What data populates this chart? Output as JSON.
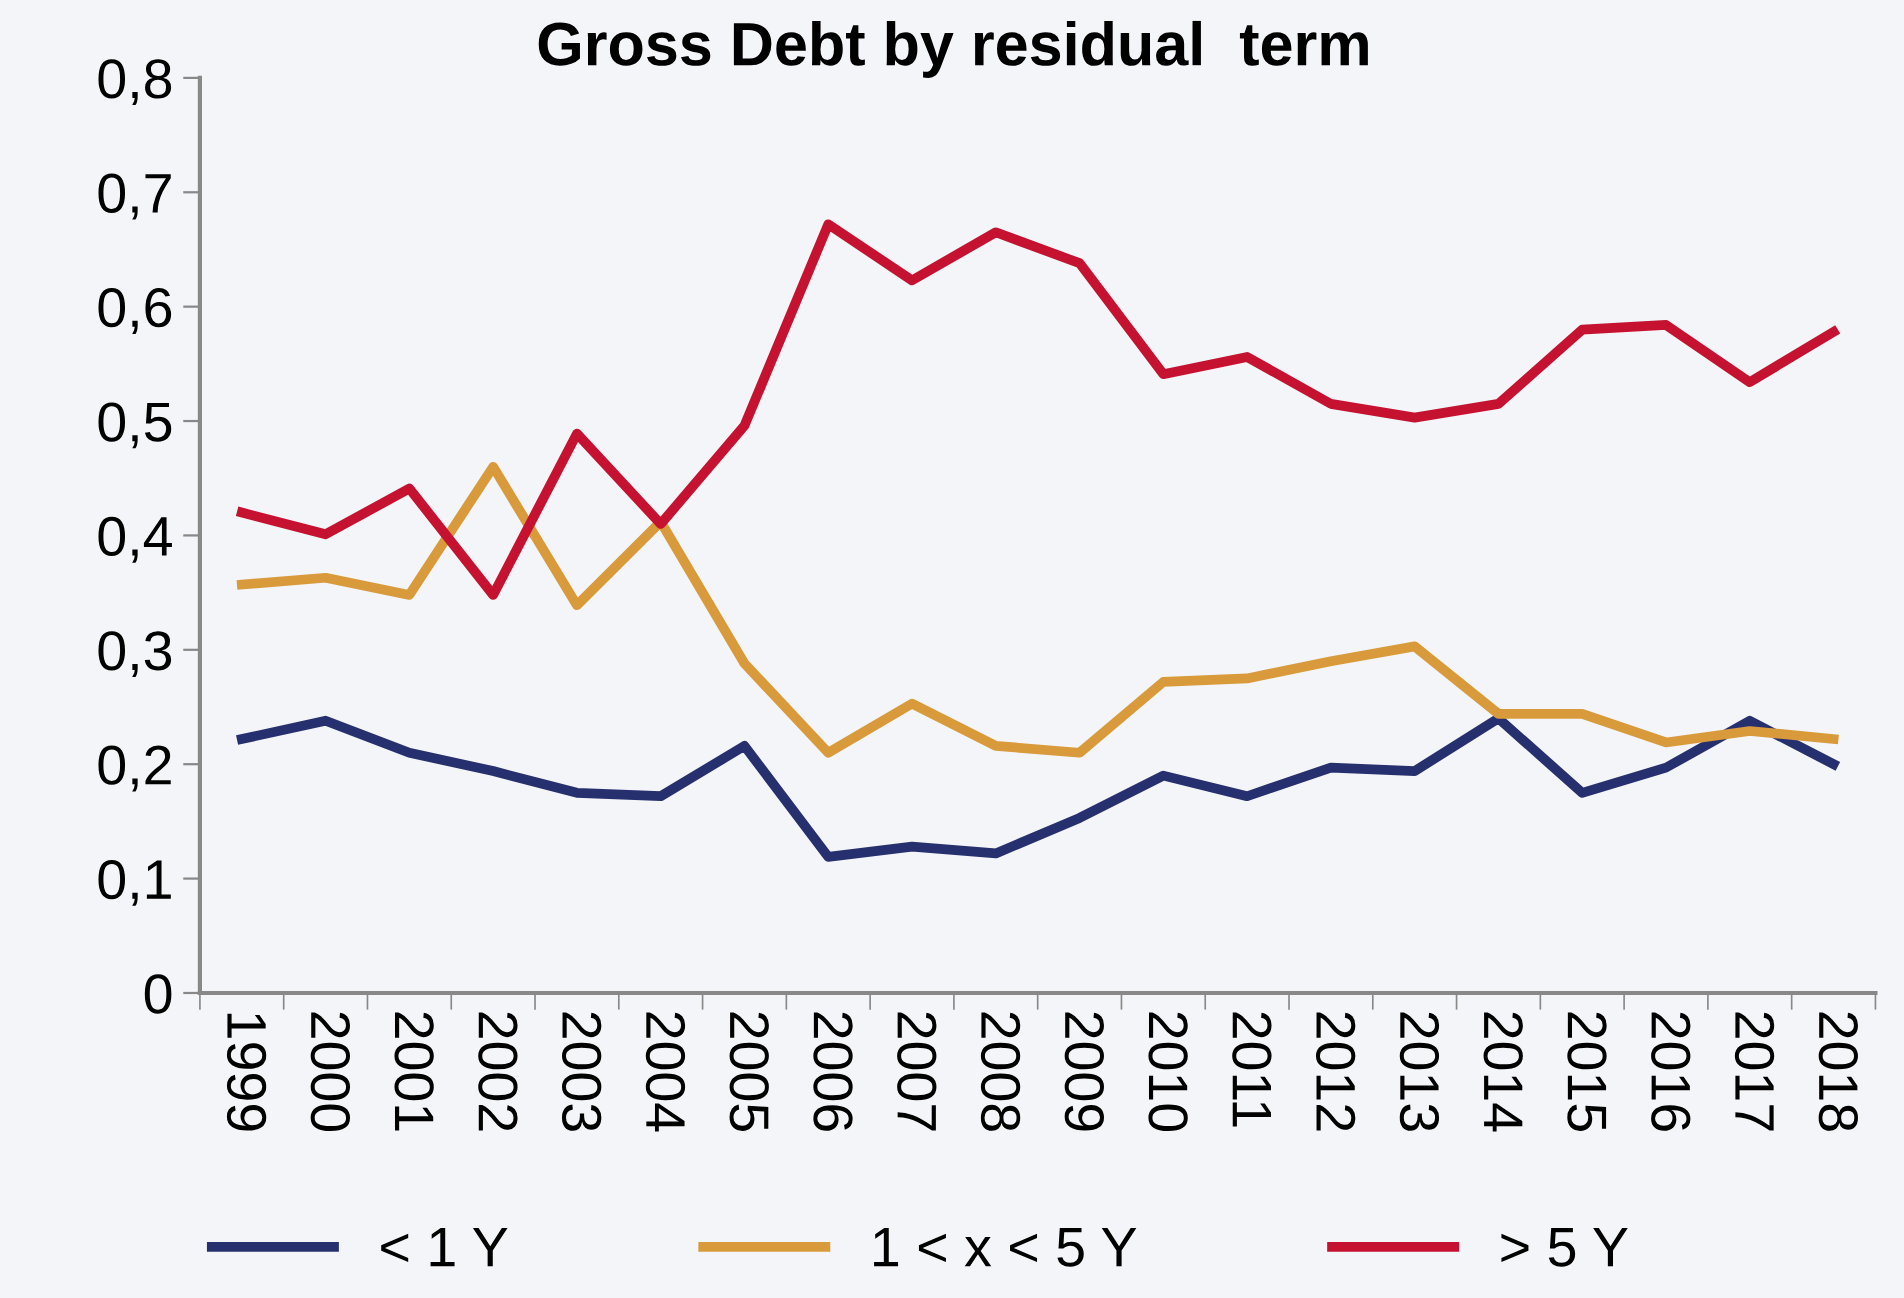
{
  "chart_data": {
    "type": "line",
    "title": "Gross Debt by residual  term",
    "categories": [
      "1999",
      "2000",
      "2001",
      "2002",
      "2003",
      "2004",
      "2005",
      "2006",
      "2007",
      "2008",
      "2009",
      "2010",
      "2011",
      "2012",
      "2013",
      "2014",
      "2015",
      "2016",
      "2017",
      "2018"
    ],
    "series": [
      {
        "name": "< 1 Y",
        "color": "#27306e",
        "values": [
          0.222,
          0.238,
          0.21,
          0.194,
          0.175,
          0.172,
          0.216,
          0.119,
          0.128,
          0.122,
          0.153,
          0.19,
          0.172,
          0.197,
          0.194,
          0.24,
          0.175,
          0.197,
          0.238,
          0.2
        ]
      },
      {
        "name": "1 < x < 5 Y",
        "color": "#d99a3b",
        "values": [
          0.357,
          0.363,
          0.348,
          0.46,
          0.339,
          0.412,
          0.288,
          0.21,
          0.253,
          0.216,
          0.21,
          0.272,
          0.275,
          0.29,
          0.303,
          0.244,
          0.244,
          0.219,
          0.229,
          0.222
        ]
      },
      {
        "name": "> 5 Y",
        "color": "#c41230",
        "values": [
          0.42,
          0.401,
          0.441,
          0.348,
          0.489,
          0.41,
          0.496,
          0.672,
          0.623,
          0.665,
          0.638,
          0.541,
          0.556,
          0.515,
          0.503,
          0.515,
          0.58,
          0.584,
          0.534,
          0.578
        ]
      }
    ],
    "ylim": [
      0,
      0.8
    ],
    "yticks": [
      {
        "value": 0,
        "label": "0"
      },
      {
        "value": 0.1,
        "label": "0,1"
      },
      {
        "value": 0.2,
        "label": "0,2"
      },
      {
        "value": 0.3,
        "label": "0,3"
      },
      {
        "value": 0.4,
        "label": "0,4"
      },
      {
        "value": 0.5,
        "label": "0,5"
      },
      {
        "value": 0.6,
        "label": "0,6"
      },
      {
        "value": 0.7,
        "label": "0,7"
      },
      {
        "value": 0.8,
        "label": "0,8"
      }
    ],
    "grid": false,
    "legend": "bottom",
    "marker": "none",
    "line_style": "solid"
  }
}
